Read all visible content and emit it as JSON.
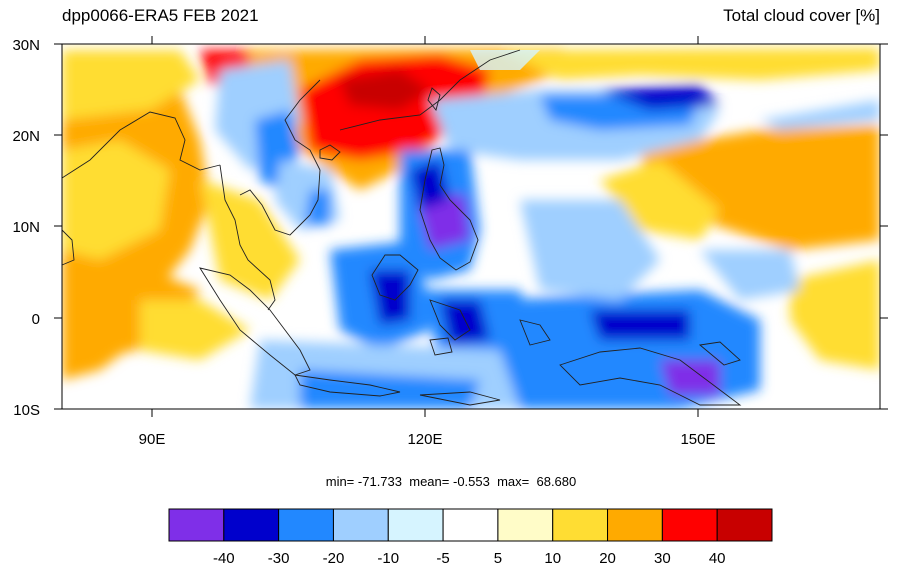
{
  "header": {
    "title_left": "dpp0066-ERA5 FEB 2021",
    "title_right": "Total cloud cover [%]"
  },
  "axes": {
    "lat_labels": [
      "30N",
      "20N",
      "10N",
      "0",
      "10S"
    ],
    "lon_labels": [
      "90E",
      "120E",
      "150E"
    ]
  },
  "stats": {
    "min_label": "min=",
    "min": "-71.733",
    "mean_label": "mean=",
    "mean": "-0.553",
    "max_label": "max=",
    "max": "68.680"
  },
  "colorbar": {
    "colors": [
      "#7f2fe8",
      "#0000cc",
      "#2288ff",
      "#9fcfff",
      "#d6f4ff",
      "#ffffff",
      "#fffcc8",
      "#ffdd33",
      "#ffaa00",
      "#ff0000",
      "#c80000"
    ],
    "labels": [
      "-40",
      "-30",
      "-20",
      "-10",
      "-5",
      "5",
      "10",
      "20",
      "30",
      "40"
    ]
  }
}
